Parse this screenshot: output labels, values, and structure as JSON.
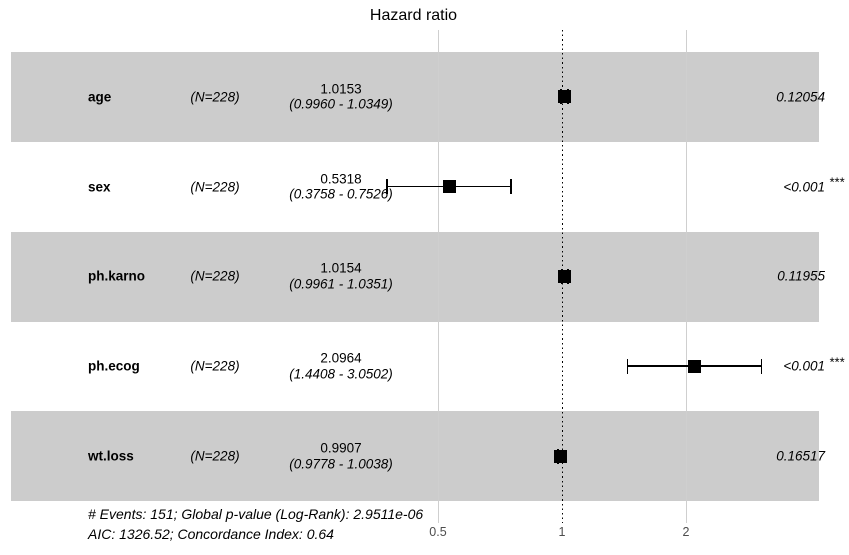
{
  "chart_data": {
    "type": "forest",
    "title": "Hazard ratio",
    "x_axis": {
      "scale": "log2",
      "tick_values": [
        0.5,
        1,
        2
      ],
      "tick_labels": [
        "0.5",
        "1",
        "2"
      ],
      "reference_line": 1,
      "gridlines_at": [
        0.5,
        2
      ]
    },
    "rows": [
      {
        "label": "age",
        "n_label": "(N=228)",
        "estimate_label": "1.0153",
        "ci_label": "(0.9960 - 1.0349)",
        "hr": 1.0153,
        "ci_low": 0.996,
        "ci_high": 1.0349,
        "p_label": "0.12054",
        "significance": ""
      },
      {
        "label": "sex",
        "n_label": "(N=228)",
        "estimate_label": "0.5318",
        "ci_label": "(0.3758 - 0.7526)",
        "hr": 0.5318,
        "ci_low": 0.3758,
        "ci_high": 0.7526,
        "p_label": "<0.001",
        "significance": "***"
      },
      {
        "label": "ph.karno",
        "n_label": "(N=228)",
        "estimate_label": "1.0154",
        "ci_label": "(0.9961 - 1.0351)",
        "hr": 1.0154,
        "ci_low": 0.9961,
        "ci_high": 1.0351,
        "p_label": "0.11955",
        "significance": ""
      },
      {
        "label": "ph.ecog",
        "n_label": "(N=228)",
        "estimate_label": "2.0964",
        "ci_label": "(1.4408 - 3.0502)",
        "hr": 2.0964,
        "ci_low": 1.4408,
        "ci_high": 3.0502,
        "p_label": "<0.001",
        "significance": "***"
      },
      {
        "label": "wt.loss",
        "n_label": "(N=228)",
        "estimate_label": "0.9907",
        "ci_label": "(0.9778 - 1.0038)",
        "hr": 0.9907,
        "ci_low": 0.9778,
        "ci_high": 1.0038,
        "p_label": "0.16517",
        "significance": ""
      }
    ],
    "footer": {
      "line1": "# Events: 151; Global p-value (Log-Rank): 2.9511e-06",
      "line2": "AIC: 1326.52; Concordance Index: 0.64"
    },
    "colors": {
      "band": "#cccccc",
      "gridline": "#cfcfcf",
      "reference_line": "#000000",
      "marker": "#000000",
      "tick_label": "#4d4d4d"
    }
  }
}
